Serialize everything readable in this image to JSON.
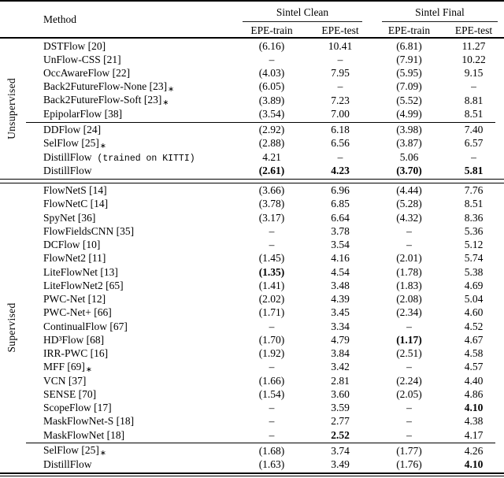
{
  "colors": {
    "text": "#000000",
    "background": "#ffffff",
    "rules": "#000000"
  },
  "table": {
    "header": {
      "method_label": "Method",
      "group_labels": [
        "Sintel Clean",
        "Sintel Final"
      ],
      "sub_labels": [
        "EPE-train",
        "EPE-test",
        "EPE-train",
        "EPE-test"
      ]
    },
    "sections": [
      {
        "label": "Unsupervised",
        "groups": [
          {
            "rows": [
              {
                "method": "DSTFlow [20]",
                "cells": [
                  {
                    "v": "(6.16)"
                  },
                  {
                    "v": "10.41"
                  },
                  {
                    "v": "(6.81)"
                  },
                  {
                    "v": "11.27"
                  }
                ]
              },
              {
                "method": "UnFlow-CSS [21]",
                "cells": [
                  {
                    "v": "–"
                  },
                  {
                    "v": "–"
                  },
                  {
                    "v": "(7.91)"
                  },
                  {
                    "v": "10.22"
                  }
                ]
              },
              {
                "method": "OccAwareFlow [22]",
                "cells": [
                  {
                    "v": "(4.03)"
                  },
                  {
                    "v": "7.95"
                  },
                  {
                    "v": "(5.95)"
                  },
                  {
                    "v": "9.15"
                  }
                ]
              },
              {
                "method": "Back2FutureFlow-None [23]",
                "star": true,
                "cells": [
                  {
                    "v": "(6.05)"
                  },
                  {
                    "v": "–"
                  },
                  {
                    "v": "(7.09)"
                  },
                  {
                    "v": "–"
                  }
                ]
              },
              {
                "method": "Back2FutureFlow-Soft [23]",
                "star": true,
                "cells": [
                  {
                    "v": "(3.89)"
                  },
                  {
                    "v": "7.23"
                  },
                  {
                    "v": "(5.52)"
                  },
                  {
                    "v": "8.81"
                  }
                ]
              },
              {
                "method": "EpipolarFlow [38]",
                "cells": [
                  {
                    "v": "(3.54)"
                  },
                  {
                    "v": "7.00"
                  },
                  {
                    "v": "(4.99)"
                  },
                  {
                    "v": "8.51"
                  }
                ]
              }
            ]
          },
          {
            "rows": [
              {
                "method": "DDFlow [24]",
                "cells": [
                  {
                    "v": "(2.92)"
                  },
                  {
                    "v": "6.18"
                  },
                  {
                    "v": "(3.98)"
                  },
                  {
                    "v": "7.40"
                  }
                ]
              },
              {
                "method": "SelFlow [25]",
                "star": true,
                "cells": [
                  {
                    "v": "(2.88)"
                  },
                  {
                    "v": "6.56"
                  },
                  {
                    "v": "(3.87)"
                  },
                  {
                    "v": "6.57"
                  }
                ]
              },
              {
                "method": "DistillFlow",
                "note": "(trained on KITTI)",
                "cells": [
                  {
                    "v": "4.21"
                  },
                  {
                    "v": "–"
                  },
                  {
                    "v": "5.06"
                  },
                  {
                    "v": "–"
                  }
                ]
              },
              {
                "method": "DistillFlow",
                "cells": [
                  {
                    "v": "(2.61)",
                    "bold": true
                  },
                  {
                    "v": "4.23",
                    "bold": true
                  },
                  {
                    "v": "(3.70)",
                    "bold": true
                  },
                  {
                    "v": "5.81",
                    "bold": true
                  }
                ]
              }
            ]
          }
        ]
      },
      {
        "label": "Supervised",
        "groups": [
          {
            "rows": [
              {
                "method": "FlowNetS [14]",
                "cells": [
                  {
                    "v": "(3.66)"
                  },
                  {
                    "v": "6.96"
                  },
                  {
                    "v": "(4.44)"
                  },
                  {
                    "v": "7.76"
                  }
                ]
              },
              {
                "method": "FlowNetC [14]",
                "cells": [
                  {
                    "v": "(3.78)"
                  },
                  {
                    "v": "6.85"
                  },
                  {
                    "v": "(5.28)"
                  },
                  {
                    "v": "8.51"
                  }
                ]
              },
              {
                "method": "SpyNet [36]",
                "cells": [
                  {
                    "v": "(3.17)"
                  },
                  {
                    "v": "6.64"
                  },
                  {
                    "v": "(4.32)"
                  },
                  {
                    "v": "8.36"
                  }
                ]
              },
              {
                "method": "FlowFieldsCNN [35]",
                "cells": [
                  {
                    "v": "–"
                  },
                  {
                    "v": "3.78"
                  },
                  {
                    "v": "–"
                  },
                  {
                    "v": "5.36"
                  }
                ]
              },
              {
                "method": "DCFlow [10]",
                "cells": [
                  {
                    "v": "–"
                  },
                  {
                    "v": "3.54"
                  },
                  {
                    "v": "–"
                  },
                  {
                    "v": "5.12"
                  }
                ]
              },
              {
                "method": "FlowNet2 [11]",
                "cells": [
                  {
                    "v": "(1.45)"
                  },
                  {
                    "v": "4.16"
                  },
                  {
                    "v": "(2.01)"
                  },
                  {
                    "v": "5.74"
                  }
                ]
              },
              {
                "method": "LiteFlowNet [13]",
                "cells": [
                  {
                    "v": "(1.35)",
                    "bold": true
                  },
                  {
                    "v": "4.54"
                  },
                  {
                    "v": "(1.78)"
                  },
                  {
                    "v": "5.38"
                  }
                ]
              },
              {
                "method": "LiteFlowNet2 [65]",
                "cells": [
                  {
                    "v": "(1.41)"
                  },
                  {
                    "v": "3.48"
                  },
                  {
                    "v": "(1.83)"
                  },
                  {
                    "v": "4.69"
                  }
                ]
              },
              {
                "method": "PWC-Net [12]",
                "cells": [
                  {
                    "v": "(2.02)"
                  },
                  {
                    "v": "4.39"
                  },
                  {
                    "v": "(2.08)"
                  },
                  {
                    "v": "5.04"
                  }
                ]
              },
              {
                "method": "PWC-Net+ [66]",
                "cells": [
                  {
                    "v": "(1.71)"
                  },
                  {
                    "v": "3.45"
                  },
                  {
                    "v": "(2.34)"
                  },
                  {
                    "v": "4.60"
                  }
                ]
              },
              {
                "method": "ContinualFlow [67]",
                "cells": [
                  {
                    "v": "–"
                  },
                  {
                    "v": "3.34"
                  },
                  {
                    "v": "–"
                  },
                  {
                    "v": "4.52"
                  }
                ]
              },
              {
                "method": "HD³Flow [68]",
                "cells": [
                  {
                    "v": "(1.70)"
                  },
                  {
                    "v": "4.79"
                  },
                  {
                    "v": "(1.17)",
                    "bold": true
                  },
                  {
                    "v": "4.67"
                  }
                ]
              },
              {
                "method": "IRR-PWC [16]",
                "cells": [
                  {
                    "v": "(1.92)"
                  },
                  {
                    "v": "3.84"
                  },
                  {
                    "v": "(2.51)"
                  },
                  {
                    "v": "4.58"
                  }
                ]
              },
              {
                "method": "MFF [69]",
                "star": true,
                "cells": [
                  {
                    "v": "–"
                  },
                  {
                    "v": "3.42"
                  },
                  {
                    "v": "–"
                  },
                  {
                    "v": "4.57"
                  }
                ]
              },
              {
                "method": "VCN [37]",
                "cells": [
                  {
                    "v": "(1.66)"
                  },
                  {
                    "v": "2.81"
                  },
                  {
                    "v": "(2.24)"
                  },
                  {
                    "v": "4.40"
                  }
                ]
              },
              {
                "method": "SENSE [70]",
                "cells": [
                  {
                    "v": "(1.54)"
                  },
                  {
                    "v": "3.60"
                  },
                  {
                    "v": "(2.05)"
                  },
                  {
                    "v": "4.86"
                  }
                ]
              },
              {
                "method": "ScopeFlow [17]",
                "cells": [
                  {
                    "v": "–"
                  },
                  {
                    "v": "3.59"
                  },
                  {
                    "v": "–"
                  },
                  {
                    "v": "4.10",
                    "bold": true
                  }
                ]
              },
              {
                "method": "MaskFlowNet-S [18]",
                "cells": [
                  {
                    "v": "–"
                  },
                  {
                    "v": "2.77"
                  },
                  {
                    "v": "–"
                  },
                  {
                    "v": "4.38"
                  }
                ]
              },
              {
                "method": "MaskFlowNet [18]",
                "cells": [
                  {
                    "v": "–"
                  },
                  {
                    "v": "2.52",
                    "bold": true
                  },
                  {
                    "v": "–"
                  },
                  {
                    "v": "4.17"
                  }
                ]
              }
            ]
          },
          {
            "rows": [
              {
                "method": "SelFlow [25]",
                "star": true,
                "cells": [
                  {
                    "v": "(1.68)"
                  },
                  {
                    "v": "3.74"
                  },
                  {
                    "v": "(1.77)"
                  },
                  {
                    "v": "4.26"
                  }
                ]
              },
              {
                "method": "DistillFlow",
                "cells": [
                  {
                    "v": "(1.63)"
                  },
                  {
                    "v": "3.49"
                  },
                  {
                    "v": "(1.76)"
                  },
                  {
                    "v": "4.10",
                    "bold": true
                  }
                ]
              }
            ]
          }
        ]
      }
    ]
  }
}
